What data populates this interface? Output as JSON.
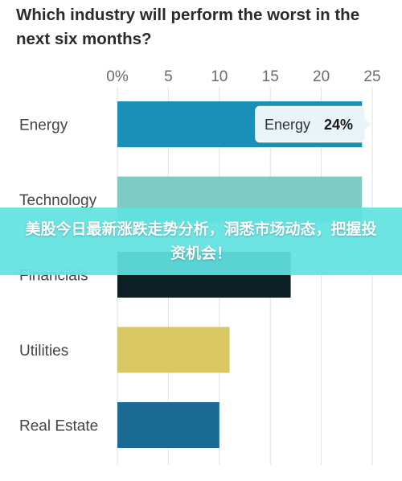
{
  "chart_data": {
    "type": "bar",
    "orientation": "horizontal",
    "title": "Which industry will perform the worst in the next six months?",
    "categories": [
      "Energy",
      "Technology",
      "Financials",
      "Utilities",
      "Real Estate"
    ],
    "values": [
      24,
      24,
      17,
      11,
      10
    ],
    "colors": [
      "#1b8fb8",
      "#7fcac4",
      "#0b1f24",
      "#d8c763",
      "#1a6a93"
    ],
    "xticks": [
      "0%",
      "5",
      "10",
      "15",
      "20",
      "25"
    ],
    "xlim": [
      0,
      25
    ],
    "grid": true,
    "tooltip": {
      "category": "Energy",
      "value_label": "24%"
    }
  },
  "banner": {
    "text": "美股今日最新涨跌走势分析，洞悉市场动态，把握投资机会！"
  }
}
